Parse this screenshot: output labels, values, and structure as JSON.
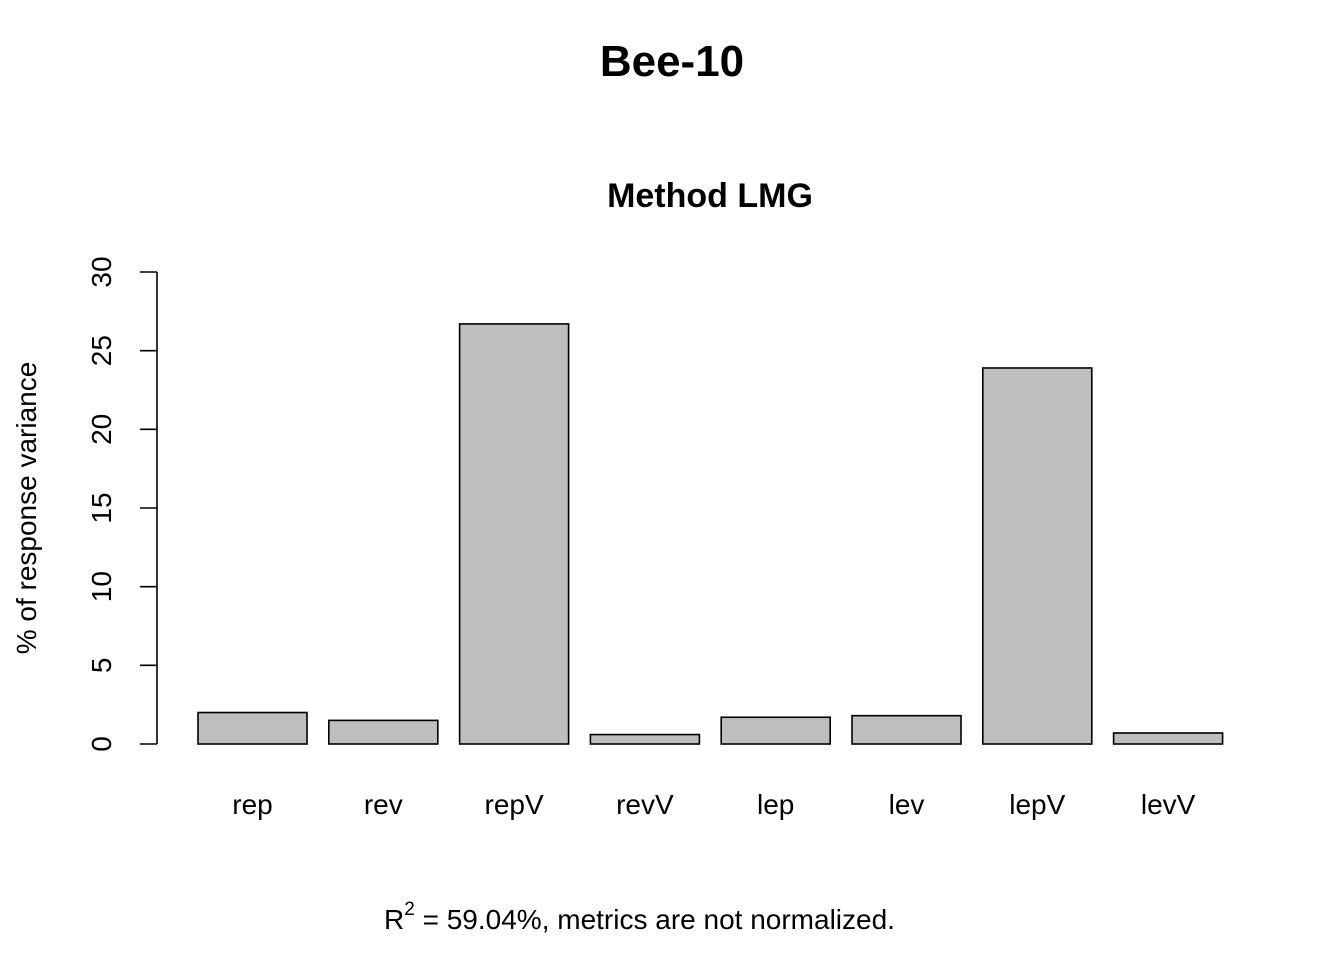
{
  "page": {
    "title": "Bee-10"
  },
  "chart_data": {
    "type": "bar",
    "title": "Method LMG",
    "xlabel": "",
    "ylabel": "% of response variance",
    "categories": [
      "rep",
      "rev",
      "repV",
      "revV",
      "lep",
      "lev",
      "lepV",
      "levV"
    ],
    "values": [
      2.0,
      1.5,
      26.7,
      0.6,
      1.7,
      1.8,
      23.9,
      0.7
    ],
    "ylim": [
      0,
      30
    ],
    "yticks": [
      "0",
      "5",
      "10",
      "15",
      "20",
      "25",
      "30"
    ],
    "grid": false,
    "legend": "none",
    "bar_color": "#BEBEBE",
    "edge_color": "#000000"
  },
  "footnote": {
    "r_symbol": "R",
    "r_exponent": "2",
    "text": " = 59.04%, metrics are not normalized."
  }
}
